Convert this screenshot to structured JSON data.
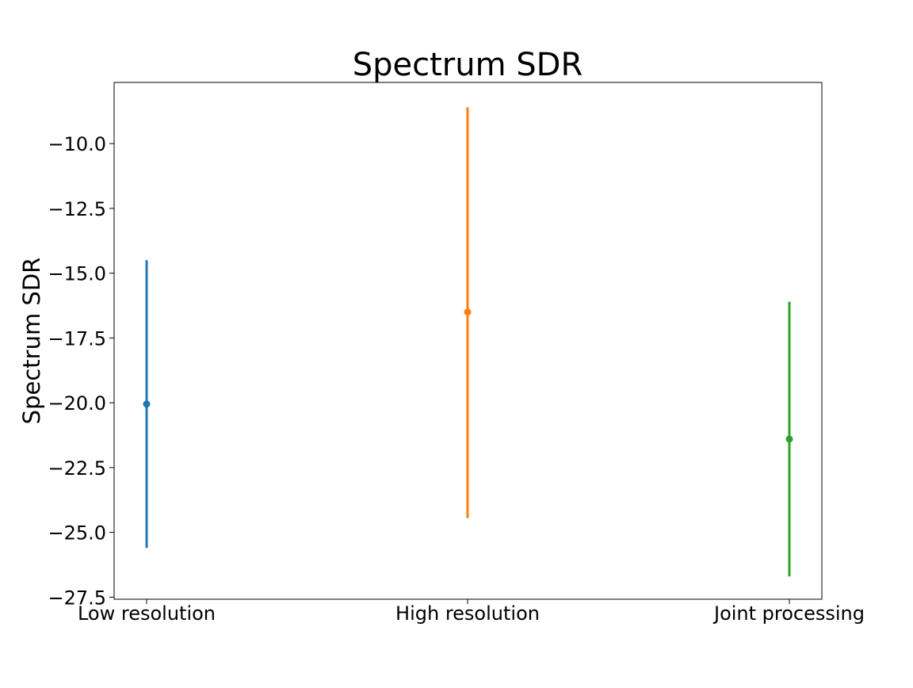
{
  "chart_data": {
    "type": "errorbar",
    "title": "Spectrum SDR",
    "xlabel": "",
    "ylabel": "Spectrum SDR",
    "categories": [
      "Low resolution",
      "High resolution",
      "Joint processing"
    ],
    "points": [
      {
        "category": "Low resolution",
        "mean": -20.05,
        "low": -25.6,
        "high": -14.5,
        "color": "#1f77b4"
      },
      {
        "category": "High resolution",
        "mean": -16.5,
        "low": -24.45,
        "high": -8.6,
        "color": "#ff7f0e"
      },
      {
        "category": "Joint processing",
        "mean": -21.4,
        "low": -26.7,
        "high": -16.1,
        "color": "#2ca02c"
      }
    ],
    "ylim": [
      -27.58,
      -7.64
    ],
    "yticks": [
      -10.0,
      -12.5,
      -15.0,
      -17.5,
      -20.0,
      -22.5,
      -25.0,
      -27.5
    ],
    "ytick_labels": [
      "−10.0",
      "−12.5",
      "−15.0",
      "−17.5",
      "−20.0",
      "−22.5",
      "−25.0",
      "−27.5"
    ],
    "grid": false,
    "legend": "none"
  }
}
